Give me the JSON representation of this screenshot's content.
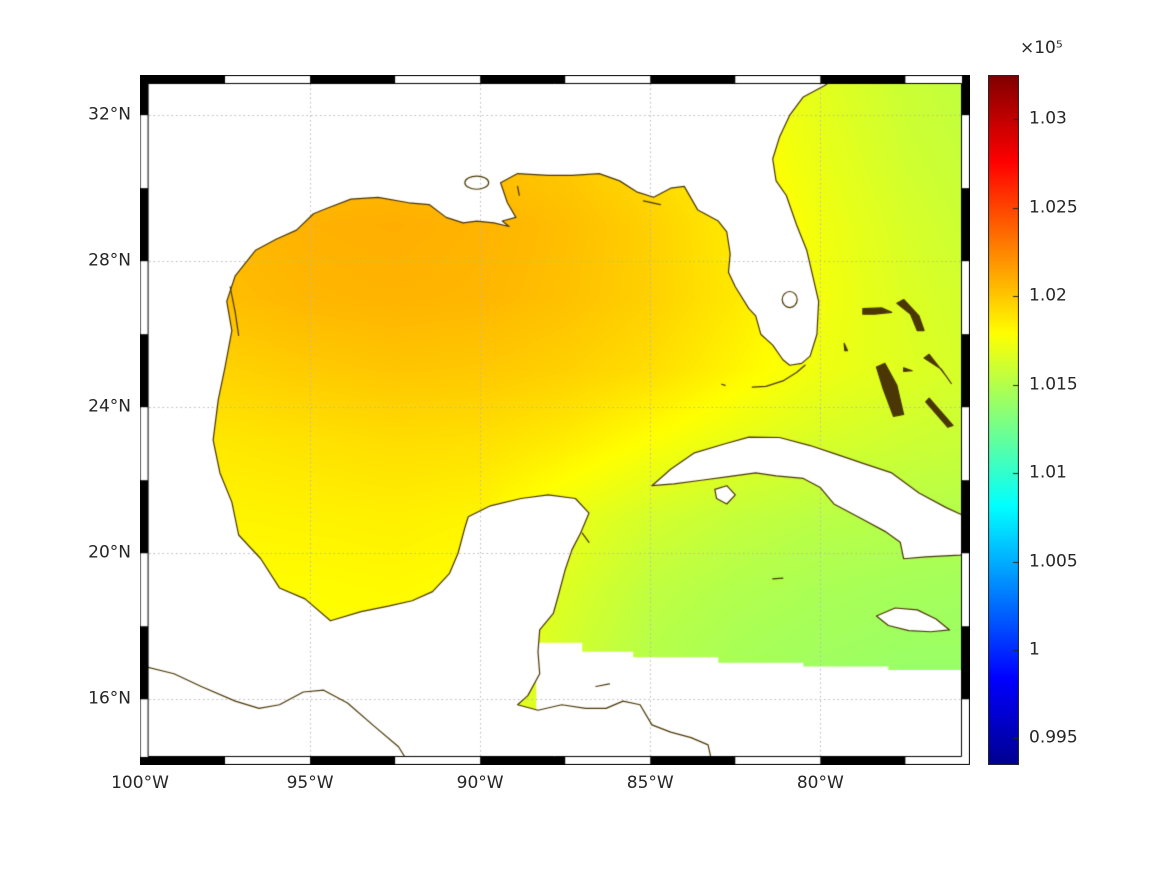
{
  "window": {
    "background": "#ffffff"
  },
  "chart_data": {
    "type": "heatmap",
    "subtype": "geographic-field-map",
    "region": "Gulf of Mexico / Western Atlantic / Caribbean",
    "title": "",
    "x_axis": {
      "tick_labels": [
        "100°W",
        "95°W",
        "90°W",
        "85°W",
        "80°W"
      ],
      "tick_lons_west": [
        100,
        95,
        90,
        85,
        80
      ],
      "lon_west_range": [
        100,
        75.6
      ]
    },
    "y_axis": {
      "tick_labels": [
        "32°N",
        "28°N",
        "24°N",
        "20°N",
        "16°N"
      ],
      "tick_lats": [
        32,
        28,
        24,
        20,
        16
      ],
      "lat_range": [
        14.2,
        33.1
      ]
    },
    "grid": {
      "visible": true,
      "style": "dotted",
      "color": "#b8b8b8"
    },
    "frame": {
      "style": "zebra",
      "colors": [
        "#000000",
        "#ffffff"
      ],
      "lon_step": 2.5,
      "lat_step": 2.0,
      "thickness_px": 8
    },
    "colorbar": {
      "multiplier_label": "×10⁵",
      "tick_labels": [
        "1.03",
        "1.025",
        "1.02",
        "1.015",
        "1.01",
        "1.005",
        "1",
        "0.995"
      ],
      "tick_values": [
        1.03,
        1.025,
        1.02,
        1.015,
        1.01,
        1.005,
        1.0,
        0.995
      ],
      "vmin": 0.9935,
      "vmax": 1.0325,
      "colormap": "jet",
      "colormap_stops": [
        {
          "t": 0.0,
          "color": "#000090"
        },
        {
          "t": 0.125,
          "color": "#0000ff"
        },
        {
          "t": 0.375,
          "color": "#00ffff"
        },
        {
          "t": 0.625,
          "color": "#ffff00"
        },
        {
          "t": 0.875,
          "color": "#ff0000"
        },
        {
          "t": 1.0,
          "color": "#800000"
        }
      ]
    },
    "field": {
      "units": "×10⁵ (pressure)",
      "lons_west": [
        100,
        97.5,
        95,
        92.5,
        90,
        87.5,
        85,
        82.5,
        80,
        77.5,
        75.6
      ],
      "lats": [
        33.1,
        31,
        29,
        27,
        25,
        23,
        21,
        19,
        17,
        14.2
      ],
      "values": [
        [
          1.019,
          1.0193,
          1.0196,
          1.0197,
          1.0196,
          1.0192,
          1.0186,
          1.0178,
          1.0168,
          1.0159,
          1.0155
        ],
        [
          1.0196,
          1.02,
          1.0203,
          1.0204,
          1.0203,
          1.0199,
          1.0192,
          1.0183,
          1.0171,
          1.0161,
          1.0157
        ],
        [
          1.0202,
          1.0206,
          1.0209,
          1.021,
          1.0208,
          1.0204,
          1.0197,
          1.0187,
          1.0174,
          1.0164,
          1.0159
        ],
        [
          1.02,
          1.0204,
          1.0207,
          1.0208,
          1.0207,
          1.0203,
          1.0197,
          1.0188,
          1.0175,
          1.0166,
          1.0162
        ],
        [
          1.0192,
          1.0196,
          1.0199,
          1.0201,
          1.02,
          1.0197,
          1.0192,
          1.0183,
          1.0173,
          1.0167,
          1.0163
        ],
        [
          1.0185,
          1.0188,
          1.019,
          1.0192,
          1.0191,
          1.0186,
          1.0178,
          1.017,
          1.0164,
          1.016,
          1.0158
        ],
        [
          1.0181,
          1.0183,
          1.0184,
          1.0185,
          1.0183,
          1.0172,
          1.0163,
          1.0157,
          1.0153,
          1.0151,
          1.015
        ],
        [
          1.0179,
          1.018,
          1.018,
          1.0181,
          1.0179,
          1.0166,
          1.0155,
          1.015,
          1.0147,
          1.0145,
          1.0144
        ],
        [
          1.0177,
          1.0178,
          1.0178,
          1.0179,
          1.0176,
          1.0162,
          1.0151,
          1.0146,
          1.0143,
          1.0141,
          1.0141
        ],
        [
          1.0176,
          1.0176,
          1.0177,
          1.0177,
          1.0174,
          1.016,
          1.0149,
          1.0143,
          1.014,
          1.0139,
          1.0138
        ]
      ]
    },
    "coast_color": "#4a3705",
    "land_color": "#ffffff",
    "geography": {
      "mainland_coast": [
        [
          79.2,
          33.2
        ],
        [
          79.9,
          32.8
        ],
        [
          80.5,
          32.5
        ],
        [
          80.9,
          32.0
        ],
        [
          81.2,
          31.4
        ],
        [
          81.4,
          30.8
        ],
        [
          81.3,
          30.2
        ],
        [
          81.0,
          29.8
        ],
        [
          80.7,
          29.0
        ],
        [
          80.4,
          28.3
        ],
        [
          80.05,
          26.9
        ],
        [
          80.1,
          26.0
        ],
        [
          80.3,
          25.4
        ],
        [
          80.55,
          25.2
        ],
        [
          80.9,
          25.15
        ],
        [
          81.1,
          25.3
        ],
        [
          81.4,
          25.7
        ],
        [
          81.75,
          26.0
        ],
        [
          81.9,
          26.5
        ],
        [
          82.1,
          26.7
        ],
        [
          82.5,
          27.3
        ],
        [
          82.7,
          27.7
        ],
        [
          82.65,
          28.2
        ],
        [
          82.75,
          28.8
        ],
        [
          83.0,
          29.1
        ],
        [
          83.6,
          29.4
        ],
        [
          84.0,
          30.05
        ],
        [
          84.4,
          30.0
        ],
        [
          84.9,
          29.75
        ],
        [
          85.4,
          29.9
        ],
        [
          85.9,
          30.2
        ],
        [
          86.5,
          30.4
        ],
        [
          87.3,
          30.35
        ],
        [
          88.0,
          30.35
        ],
        [
          88.9,
          30.4
        ],
        [
          89.4,
          30.15
        ],
        [
          89.2,
          29.6
        ],
        [
          88.95,
          29.2
        ],
        [
          89.35,
          29.1
        ],
        [
          89.15,
          28.95
        ],
        [
          89.6,
          29.05
        ],
        [
          90.1,
          29.1
        ],
        [
          90.5,
          29.05
        ],
        [
          91.0,
          29.2
        ],
        [
          91.5,
          29.55
        ],
        [
          92.1,
          29.6
        ],
        [
          93.0,
          29.75
        ],
        [
          93.8,
          29.7
        ],
        [
          94.5,
          29.45
        ],
        [
          94.9,
          29.3
        ],
        [
          95.4,
          28.85
        ],
        [
          96.0,
          28.6
        ],
        [
          96.6,
          28.3
        ],
        [
          97.2,
          27.6
        ],
        [
          97.45,
          26.9
        ],
        [
          97.3,
          26.1
        ],
        [
          97.5,
          25.1
        ],
        [
          97.7,
          24.2
        ],
        [
          97.85,
          23.1
        ],
        [
          97.65,
          22.2
        ],
        [
          97.3,
          21.4
        ],
        [
          97.1,
          20.5
        ],
        [
          96.45,
          19.85
        ],
        [
          95.9,
          19.05
        ],
        [
          95.15,
          18.75
        ],
        [
          94.4,
          18.15
        ],
        [
          93.5,
          18.4
        ],
        [
          92.7,
          18.55
        ],
        [
          92.0,
          18.7
        ],
        [
          91.4,
          18.95
        ],
        [
          90.9,
          19.45
        ],
        [
          90.65,
          20.0
        ],
        [
          90.45,
          20.7
        ],
        [
          90.35,
          21.0
        ],
        [
          89.7,
          21.3
        ],
        [
          88.8,
          21.5
        ],
        [
          88.0,
          21.6
        ],
        [
          87.2,
          21.5
        ],
        [
          86.8,
          21.1
        ],
        [
          87.05,
          20.55
        ],
        [
          87.3,
          20.1
        ],
        [
          87.5,
          19.55
        ],
        [
          87.7,
          18.85
        ],
        [
          87.85,
          18.35
        ],
        [
          88.25,
          17.9
        ],
        [
          88.3,
          17.3
        ],
        [
          88.25,
          16.7
        ],
        [
          88.6,
          16.1
        ],
        [
          88.9,
          15.85
        ],
        [
          88.3,
          15.7
        ],
        [
          87.6,
          15.85
        ],
        [
          86.9,
          15.75
        ],
        [
          86.3,
          15.75
        ],
        [
          85.8,
          15.95
        ],
        [
          85.3,
          15.85
        ],
        [
          84.95,
          15.3
        ],
        [
          84.4,
          15.1
        ],
        [
          83.8,
          14.95
        ],
        [
          83.3,
          14.75
        ],
        [
          83.1,
          13.9
        ]
      ],
      "mainland_closure": [
        [
          101,
          13.9
        ],
        [
          101,
          34
        ],
        [
          79.2,
          34
        ]
      ],
      "no_data_polygon": [
        [
          88.35,
          13.9
        ],
        [
          88.35,
          17.55
        ],
        [
          87.0,
          17.55
        ],
        [
          87.0,
          17.3
        ],
        [
          85.5,
          17.3
        ],
        [
          85.5,
          17.15
        ],
        [
          83.0,
          17.15
        ],
        [
          83.0,
          17.0
        ],
        [
          80.5,
          17.0
        ],
        [
          80.5,
          16.9
        ],
        [
          78.0,
          16.9
        ],
        [
          78.0,
          16.8
        ],
        [
          75.0,
          16.8
        ],
        [
          75.0,
          13.9
        ]
      ],
      "islands_outlined": {
        "cuba": [
          [
            84.95,
            21.85
          ],
          [
            84.4,
            22.3
          ],
          [
            83.7,
            22.75
          ],
          [
            82.8,
            23.0
          ],
          [
            82.1,
            23.18
          ],
          [
            81.2,
            23.17
          ],
          [
            80.3,
            22.95
          ],
          [
            79.5,
            22.7
          ],
          [
            78.7,
            22.45
          ],
          [
            77.9,
            22.2
          ],
          [
            77.1,
            21.65
          ],
          [
            76.3,
            21.25
          ],
          [
            75.6,
            20.95
          ],
          [
            75.2,
            20.7
          ],
          [
            75.2,
            20.0
          ],
          [
            75.9,
            19.95
          ],
          [
            76.9,
            19.9
          ],
          [
            77.55,
            19.85
          ],
          [
            77.65,
            20.3
          ],
          [
            78.1,
            20.6
          ],
          [
            78.8,
            20.95
          ],
          [
            79.6,
            21.35
          ],
          [
            80.0,
            21.8
          ],
          [
            80.5,
            22.05
          ],
          [
            81.3,
            22.12
          ],
          [
            81.9,
            22.2
          ],
          [
            82.7,
            22.1
          ],
          [
            83.5,
            22.0
          ],
          [
            84.3,
            21.9
          ]
        ],
        "jamaica": [
          [
            78.35,
            18.28
          ],
          [
            77.8,
            18.5
          ],
          [
            77.15,
            18.45
          ],
          [
            76.6,
            18.2
          ],
          [
            76.2,
            17.9
          ],
          [
            76.75,
            17.85
          ],
          [
            77.4,
            17.88
          ],
          [
            78.0,
            18.02
          ]
        ],
        "isla_juventud": [
          [
            83.1,
            21.75
          ],
          [
            82.75,
            21.85
          ],
          [
            82.5,
            21.6
          ],
          [
            82.75,
            21.35
          ],
          [
            83.05,
            21.5
          ]
        ]
      },
      "islands_filled": {
        "grand_bahama": [
          [
            78.75,
            26.7
          ],
          [
            78.2,
            26.72
          ],
          [
            77.9,
            26.6
          ],
          [
            78.4,
            26.55
          ],
          [
            78.75,
            26.55
          ]
        ],
        "abaco": [
          [
            77.55,
            26.95
          ],
          [
            77.1,
            26.5
          ],
          [
            76.95,
            26.1
          ],
          [
            77.15,
            26.1
          ],
          [
            77.35,
            26.55
          ],
          [
            77.75,
            26.85
          ]
        ],
        "andros": [
          [
            78.1,
            25.2
          ],
          [
            77.75,
            24.6
          ],
          [
            77.55,
            23.8
          ],
          [
            77.85,
            23.75
          ],
          [
            78.15,
            24.5
          ],
          [
            78.35,
            25.1
          ]
        ],
        "eleuthera": [
          [
            76.8,
            25.45
          ],
          [
            76.3,
            24.85
          ],
          [
            76.15,
            24.65
          ],
          [
            76.45,
            25.05
          ],
          [
            76.95,
            25.35
          ]
        ],
        "exuma": [
          [
            76.8,
            24.25
          ],
          [
            76.1,
            23.5
          ],
          [
            76.25,
            23.45
          ],
          [
            76.9,
            24.15
          ]
        ],
        "bimini": [
          [
            79.3,
            25.75
          ],
          [
            79.2,
            25.55
          ],
          [
            79.28,
            25.55
          ]
        ],
        "new_providence": [
          [
            77.55,
            25.08
          ],
          [
            77.3,
            25.0
          ],
          [
            77.55,
            24.98
          ]
        ],
        "cat_island": [
          [
            75.75,
            24.45
          ],
          [
            75.45,
            24.05
          ],
          [
            75.6,
            24.0
          ],
          [
            75.8,
            24.4
          ]
        ]
      },
      "coastal_lines": {
        "florida_keys": [
          [
            80.45,
            25.15
          ],
          [
            80.7,
            24.95
          ],
          [
            81.1,
            24.72
          ],
          [
            81.6,
            24.57
          ],
          [
            82.0,
            24.55
          ]
        ],
        "dry_tortugas": [
          [
            82.9,
            24.63
          ],
          [
            82.8,
            24.6
          ]
        ],
        "pacific_coast_mexico": [
          [
            100.3,
            17.0
          ],
          [
            99.0,
            16.7
          ],
          [
            98.2,
            16.35
          ],
          [
            97.2,
            15.95
          ],
          [
            96.5,
            15.75
          ],
          [
            95.9,
            15.85
          ],
          [
            95.2,
            16.2
          ],
          [
            94.6,
            16.25
          ],
          [
            93.9,
            15.9
          ],
          [
            93.1,
            15.25
          ],
          [
            92.4,
            14.7
          ],
          [
            92.0,
            14.1
          ]
        ],
        "texas_lagoon": [
          [
            97.35,
            27.3
          ],
          [
            97.2,
            26.6
          ],
          [
            97.1,
            25.97
          ]
        ],
        "cozumel": [
          [
            87.0,
            20.55
          ],
          [
            86.8,
            20.3
          ]
        ],
        "roatan": [
          [
            86.6,
            16.35
          ],
          [
            86.2,
            16.42
          ]
        ],
        "cayman": [
          [
            81.4,
            19.3
          ],
          [
            81.1,
            19.32
          ]
        ],
        "fl_panhandle_barrier": [
          [
            85.2,
            29.65
          ],
          [
            84.7,
            29.55
          ]
        ],
        "chandeleur": [
          [
            88.9,
            30.05
          ],
          [
            88.85,
            29.8
          ]
        ]
      },
      "lakes": [
        {
          "name": "okeechobee",
          "center": [
            80.9,
            26.95
          ],
          "rx": 0.22,
          "ry": 0.22
        },
        {
          "name": "pontchartrain",
          "center": [
            90.1,
            30.15
          ],
          "rx": 0.35,
          "ry": 0.18
        }
      ]
    }
  }
}
